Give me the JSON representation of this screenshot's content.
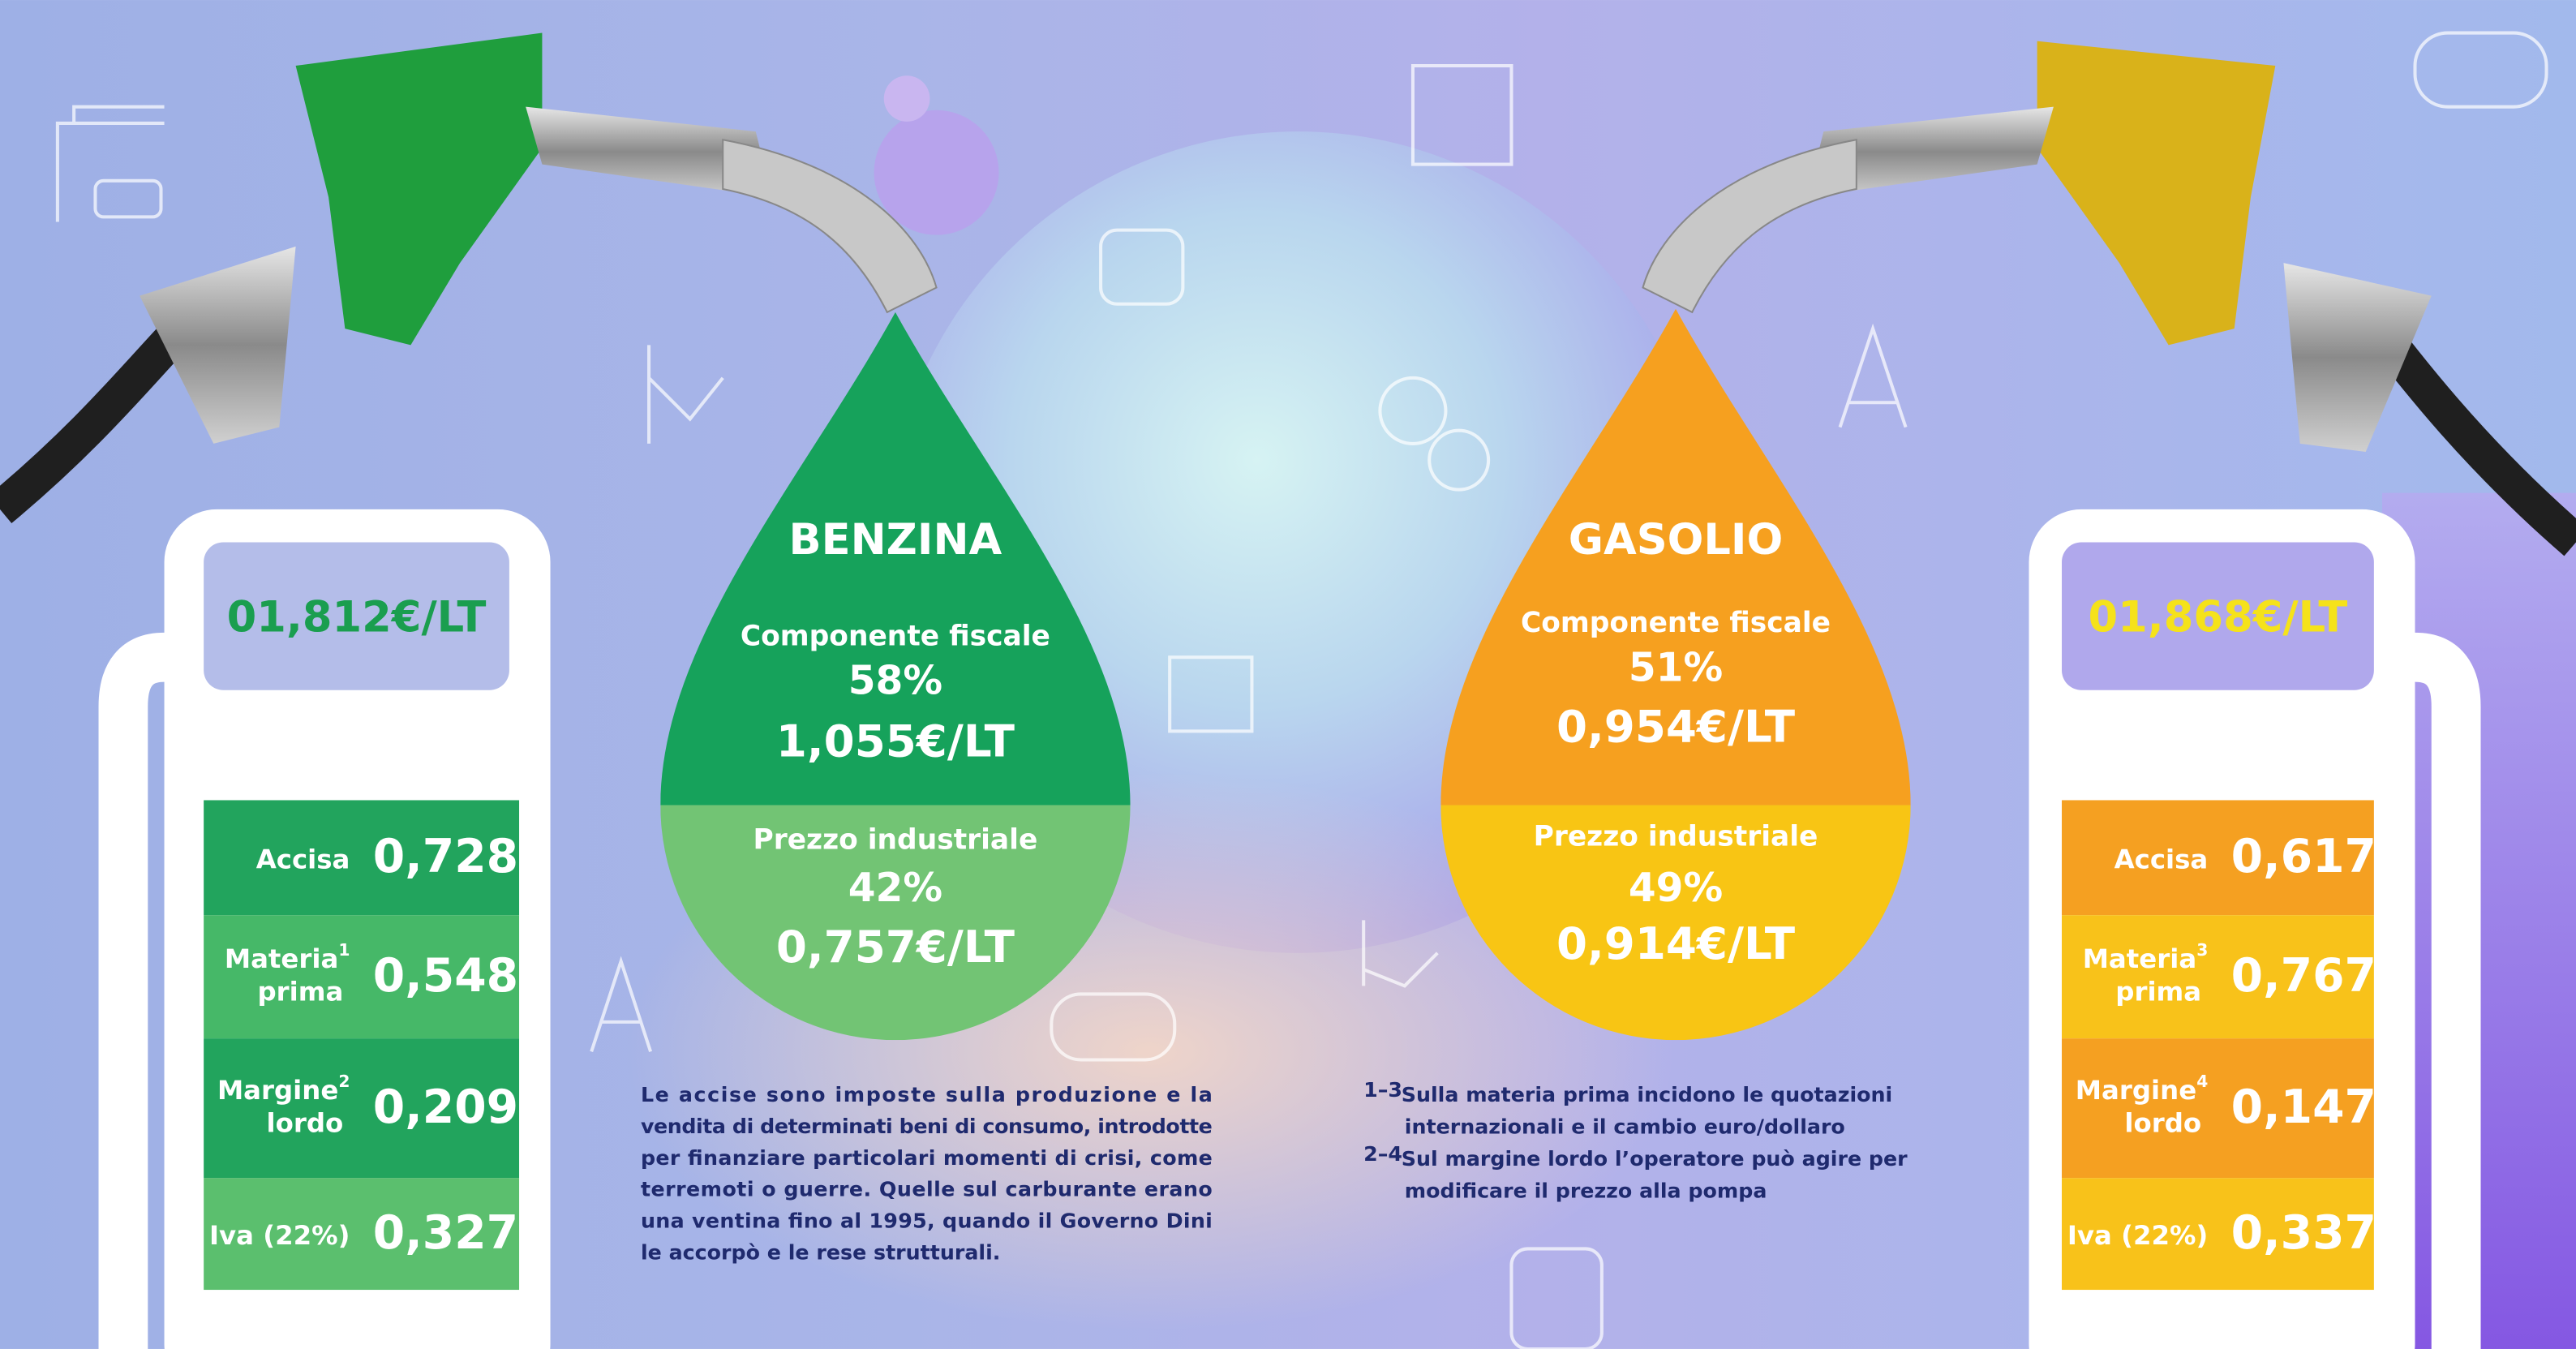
{
  "benzina": {
    "price": "01,812€/LT",
    "title": "BENZINA",
    "fiscal": {
      "label": "Componente fiscale",
      "percent": "58%",
      "value": "1,055€/LT"
    },
    "industrial": {
      "label": "Prezzo industriale",
      "percent": "42%",
      "value": "0,757€/LT"
    },
    "rows": [
      {
        "label": "Accisa",
        "value": "0,728"
      },
      {
        "label": "Materia",
        "sup": "1",
        "label2": "prima",
        "value": "0,548"
      },
      {
        "label": "Margine",
        "sup": "2",
        "label2": "lordo",
        "value": "0,209"
      },
      {
        "label": "Iva (22%)",
        "value": "0,327"
      }
    ]
  },
  "gasolio": {
    "price": "01,868€/LT",
    "title": "GASOLIO",
    "fiscal": {
      "label": "Componente fiscale",
      "percent": "51%",
      "value": "0,954€/LT"
    },
    "industrial": {
      "label": "Prezzo industriale",
      "percent": "49%",
      "value": "0,914€/LT"
    },
    "rows": [
      {
        "label": "Accisa",
        "value": "0,617"
      },
      {
        "label": "Materia",
        "sup": "3",
        "label2": "prima",
        "value": "0,767"
      },
      {
        "label": "Margine",
        "sup": "4",
        "label2": "lordo",
        "value": "0,147"
      },
      {
        "label": "Iva (22%)",
        "value": "0,337"
      }
    ]
  },
  "accise_note": [
    "Le accise sono imposte sulla produzione e la",
    "vendita di determinati beni di consumo, introdotte",
    "per finanziare particolari momenti di crisi, come",
    "terremoti o guerre. Quelle sul carburante erano",
    "una ventina fino al 1995, quando il Governo Dini",
    "le accorpò e le rese strutturali."
  ],
  "footnotes": [
    {
      "marker": "1–3",
      "lines": [
        "Sulla materia prima incidono le quotazioni",
        "internazionali e il cambio euro/dollaro"
      ]
    },
    {
      "marker": "2–4",
      "lines": [
        "Sul margine lordo l’operatore può agire per",
        "modificare il prezzo alla pompa"
      ]
    }
  ]
}
